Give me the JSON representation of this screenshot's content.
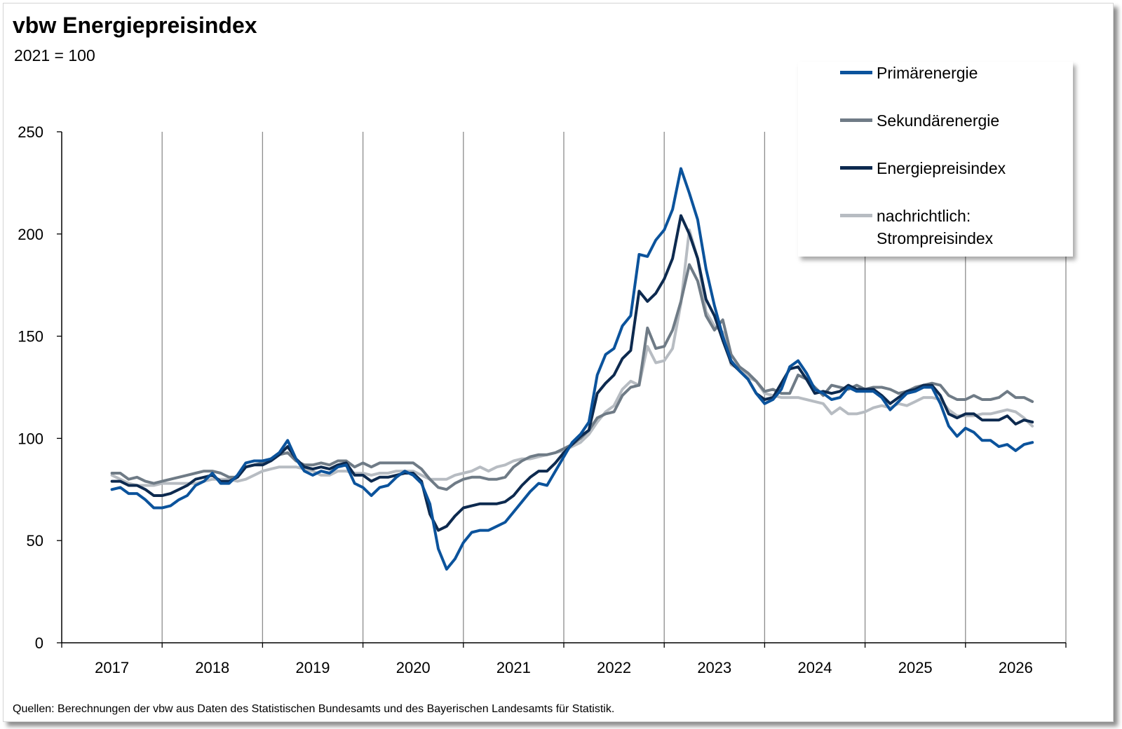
{
  "header": {
    "title": "vbw Energiepreisindex",
    "subtitle": "2021 = 100"
  },
  "footer": {
    "source": "Quellen: Berechnungen der vbw aus Daten des Statistischen Bundesamts und des Bayerischen Landesamts für Statistik."
  },
  "chart_data": {
    "type": "line",
    "title": "vbw Energiepreisindex",
    "subtitle": "2021 = 100",
    "xlabel": "",
    "ylabel": "",
    "x_ticks": [
      "2017",
      "2018",
      "2019",
      "2020",
      "2021",
      "2022",
      "2023",
      "2024",
      "2025",
      "2026"
    ],
    "y_ticks": [
      "0",
      "50",
      "100",
      "150",
      "200",
      "250"
    ],
    "ylim": [
      0,
      250
    ],
    "x_start": 2017.0,
    "x_step": 0.08333,
    "grid": "vertical year lines",
    "legend_position": "top-right",
    "series": [
      {
        "name": "Primärenergie",
        "color": "#0b539c",
        "values": [
          75,
          76,
          73,
          73,
          70,
          66,
          66,
          67,
          70,
          72,
          77,
          79,
          83,
          78,
          78,
          82,
          88,
          89,
          89,
          90,
          93,
          99,
          90,
          84,
          82,
          84,
          83,
          86,
          87,
          78,
          76,
          72,
          76,
          77,
          81,
          84,
          82,
          78,
          68,
          46,
          36,
          41,
          49,
          54,
          55,
          55,
          57,
          59,
          64,
          69,
          74,
          78,
          77,
          84,
          91,
          98,
          102,
          108,
          131,
          141,
          144,
          155,
          160,
          190,
          189,
          197,
          202,
          212,
          232,
          220,
          207,
          183,
          165,
          150,
          138,
          133,
          129,
          122,
          117,
          119,
          124,
          135,
          138,
          132,
          124,
          122,
          119,
          120,
          125,
          123,
          123,
          123,
          120,
          114,
          118,
          122,
          123,
          125,
          125,
          117,
          106,
          101,
          105,
          103,
          99,
          99,
          96,
          97,
          94,
          97,
          98
        ],
        "label_for": "Primärenergie"
      },
      {
        "name": "Sekundärenergie",
        "color": "#6f7b86",
        "values": [
          83,
          83,
          80,
          81,
          79,
          78,
          79,
          80,
          81,
          82,
          83,
          84,
          84,
          83,
          81,
          81,
          86,
          87,
          88,
          90,
          92,
          93,
          89,
          87,
          87,
          88,
          87,
          89,
          89,
          86,
          88,
          86,
          88,
          88,
          88,
          88,
          88,
          85,
          80,
          76,
          75,
          78,
          80,
          81,
          81,
          80,
          80,
          81,
          86,
          89,
          91,
          92,
          92,
          93,
          95,
          97,
          100,
          104,
          110,
          112,
          113,
          121,
          125,
          126,
          154,
          144,
          145,
          153,
          167,
          185,
          177,
          160,
          153,
          158,
          141,
          135,
          132,
          128,
          123,
          124,
          122,
          122,
          131,
          129,
          125,
          121,
          126,
          125,
          124,
          126,
          124,
          125,
          125,
          124,
          122,
          123,
          125,
          126,
          127,
          126,
          121,
          119,
          119,
          121,
          119,
          119,
          120,
          123,
          120,
          120,
          118
        ]
      },
      {
        "name": "Energiepreisindex",
        "color": "#0d2a4f",
        "values": [
          79,
          79,
          77,
          77,
          75,
          72,
          72,
          73,
          75,
          77,
          80,
          81,
          82,
          79,
          79,
          81,
          86,
          87,
          87,
          89,
          92,
          96,
          90,
          86,
          85,
          86,
          85,
          87,
          88,
          82,
          82,
          79,
          81,
          81,
          82,
          83,
          83,
          79,
          63,
          55,
          57,
          62,
          66,
          67,
          68,
          68,
          68,
          69,
          72,
          77,
          81,
          84,
          84,
          88,
          93,
          97,
          101,
          104,
          122,
          127,
          131,
          139,
          143,
          172,
          167,
          171,
          178,
          188,
          209,
          200,
          188,
          168,
          160,
          148,
          137,
          133,
          129,
          122,
          119,
          120,
          127,
          134,
          135,
          129,
          122,
          123,
          122,
          123,
          126,
          124,
          124,
          124,
          121,
          117,
          120,
          123,
          124,
          126,
          126,
          121,
          112,
          110,
          112,
          112,
          109,
          109,
          109,
          111,
          107,
          109,
          108
        ]
      },
      {
        "name": "nachrichtlich: Strompreisindex",
        "color": "#b7bcc2",
        "values": [
          82,
          80,
          78,
          77,
          77,
          77,
          78,
          78,
          78,
          78,
          78,
          79,
          80,
          80,
          80,
          79,
          80,
          82,
          84,
          85,
          86,
          86,
          86,
          85,
          84,
          82,
          82,
          84,
          84,
          83,
          83,
          82,
          83,
          83,
          84,
          84,
          84,
          82,
          80,
          80,
          80,
          82,
          83,
          84,
          86,
          84,
          86,
          87,
          89,
          90,
          90,
          91,
          92,
          93,
          94,
          96,
          98,
          102,
          108,
          113,
          116,
          124,
          128,
          126,
          145,
          137,
          138,
          144,
          166,
          202,
          188,
          162,
          155,
          152,
          136,
          134,
          130,
          128,
          122,
          121,
          120,
          120,
          120,
          119,
          118,
          117,
          112,
          115,
          112,
          112,
          113,
          115,
          116,
          115,
          117,
          116,
          118,
          120,
          120,
          119,
          114,
          111,
          111,
          111,
          112,
          112,
          113,
          114,
          113,
          110,
          106
        ]
      }
    ]
  }
}
